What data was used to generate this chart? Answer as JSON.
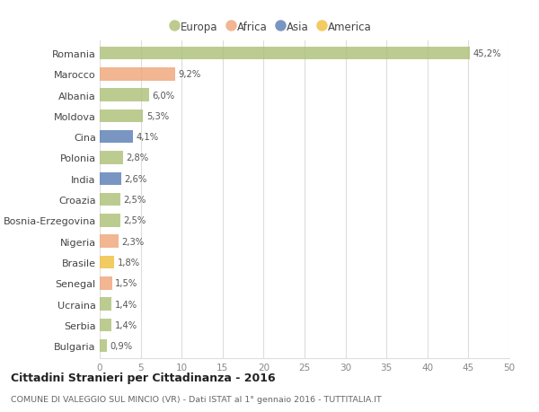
{
  "countries": [
    "Romania",
    "Marocco",
    "Albania",
    "Moldova",
    "Cina",
    "Polonia",
    "India",
    "Croazia",
    "Bosnia-Erzegovina",
    "Nigeria",
    "Brasile",
    "Senegal",
    "Ucraina",
    "Serbia",
    "Bulgaria"
  ],
  "values": [
    45.2,
    9.2,
    6.0,
    5.3,
    4.1,
    2.8,
    2.6,
    2.5,
    2.5,
    2.3,
    1.8,
    1.5,
    1.4,
    1.4,
    0.9
  ],
  "labels": [
    "45,2%",
    "9,2%",
    "6,0%",
    "5,3%",
    "4,1%",
    "2,8%",
    "2,6%",
    "2,5%",
    "2,5%",
    "2,3%",
    "1,8%",
    "1,5%",
    "1,4%",
    "1,4%",
    "0,9%"
  ],
  "continents": [
    "Europa",
    "Africa",
    "Europa",
    "Europa",
    "Asia",
    "Europa",
    "Asia",
    "Europa",
    "Europa",
    "Africa",
    "America",
    "Africa",
    "Europa",
    "Europa",
    "Europa"
  ],
  "colors": {
    "Europa": "#adc178",
    "Africa": "#f0a67a",
    "Asia": "#5b7fb5",
    "America": "#f0c040"
  },
  "background_color": "#ffffff",
  "grid_color": "#dddddd",
  "xlim": [
    0,
    50
  ],
  "xticks": [
    0,
    5,
    10,
    15,
    20,
    25,
    30,
    35,
    40,
    45,
    50
  ],
  "title": "Cittadini Stranieri per Cittadinanza - 2016",
  "subtitle": "COMUNE DI VALEGGIO SUL MINCIO (VR) - Dati ISTAT al 1° gennaio 2016 - TUTTITALIA.IT",
  "bar_alpha": 0.82,
  "legend_order": [
    "Europa",
    "Africa",
    "Asia",
    "America"
  ]
}
